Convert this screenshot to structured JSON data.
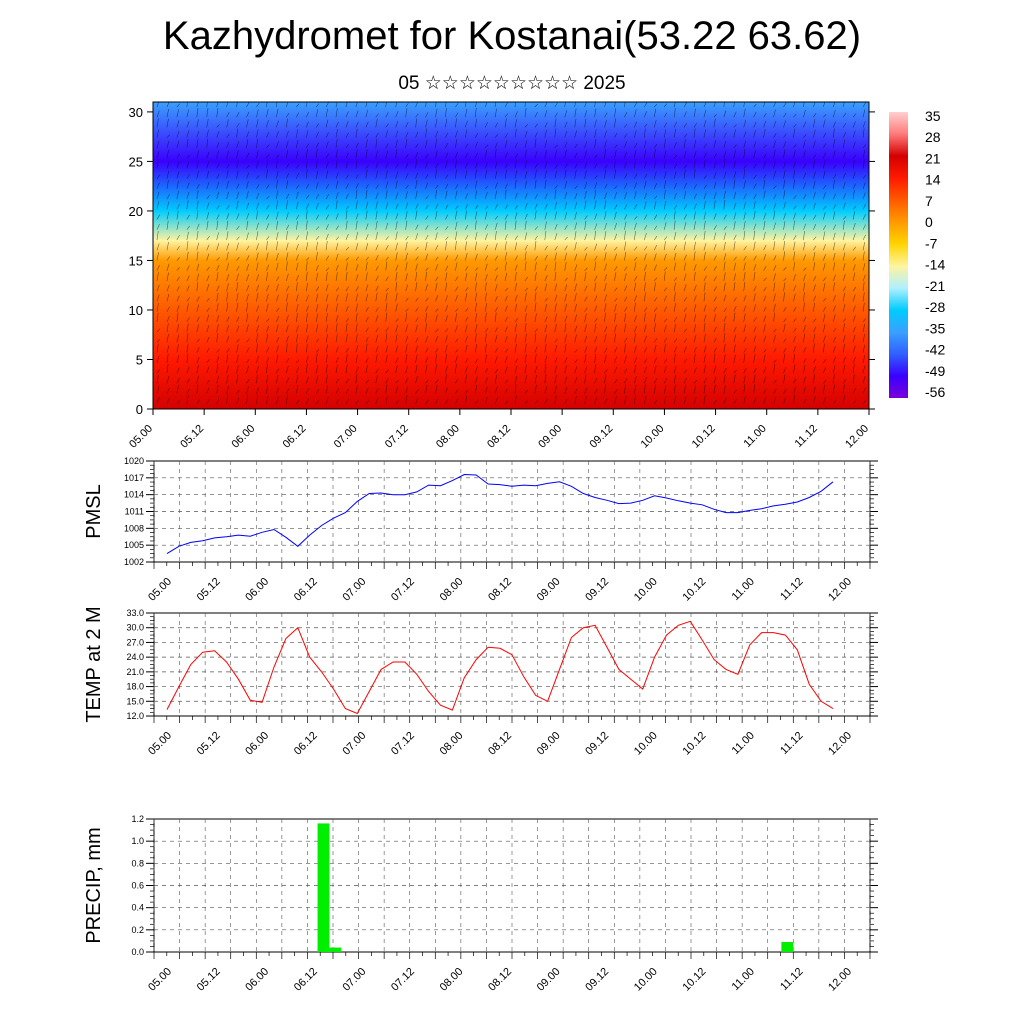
{
  "header": {
    "title": "Kazhydromet for Kostanai(53.22 63.62)",
    "subtitle": "05 ☆☆☆☆☆☆☆☆☆ 2025"
  },
  "chart_data": [
    {
      "type": "heatmap",
      "title": "",
      "xlabel": "",
      "ylabel": "",
      "x_tick_labels": [
        "05.00",
        "05.12",
        "06.00",
        "06.12",
        "07.00",
        "07.12",
        "08.00",
        "08.12",
        "09.00",
        "09.12",
        "10.00",
        "10.12",
        "11.00",
        "11.12",
        "12.00"
      ],
      "y_ticks": [
        0,
        5,
        10,
        15,
        20,
        25,
        30
      ],
      "ylim": [
        0,
        31
      ],
      "colorbar": {
        "labels": [
          "35",
          "28",
          "21",
          "14",
          "7",
          "0",
          "-7",
          "-14",
          "-21",
          "-28",
          "-35",
          "-42",
          "-49",
          "-56"
        ],
        "range": [
          -63,
          42
        ]
      },
      "field_description": "temperature cross-section with wind barbs",
      "field_levels": [
        {
          "height": 0,
          "value": 24
        },
        {
          "height": 5,
          "value": 20
        },
        {
          "height": 10,
          "value": 10
        },
        {
          "height": 15,
          "value": -2
        },
        {
          "height": 17,
          "value": -14
        },
        {
          "height": 20,
          "value": -32
        },
        {
          "height": 25,
          "value": -56
        },
        {
          "height": 31,
          "value": -42
        }
      ],
      "colors": {
        "scale": [
          "#7a00d8",
          "#3a00ff",
          "#3060ff",
          "#3aa0ff",
          "#00ccff",
          "#b0f0ff",
          "#fff4a0",
          "#ffd400",
          "#ff9a00",
          "#ff5a00",
          "#ff1a00",
          "#d40000",
          "#ff7a7a",
          "#ffd0d0"
        ]
      }
    },
    {
      "type": "line",
      "ylabel": "PMSL",
      "x_tick_labels": [
        "05.00",
        "05.12",
        "06.00",
        "06.12",
        "07.00",
        "07.12",
        "08.00",
        "08.12",
        "09.00",
        "09.12",
        "10.00",
        "10.12",
        "11.00",
        "11.12",
        "12.00"
      ],
      "y_tick_labels": [
        "1002",
        "1005",
        "1008",
        "1011",
        "1014",
        "1017",
        "1020"
      ],
      "ylim": [
        1002,
        1020
      ],
      "series": [
        {
          "color": "#0000ff",
          "values": [
            1003.5,
            1004.8,
            1005.5,
            1005.8,
            1006.3,
            1006.5,
            1006.8,
            1006.6,
            1007.3,
            1007.8,
            1006.4,
            1004.8,
            1006.8,
            1008.5,
            1009.8,
            1010.8,
            1012.8,
            1014.2,
            1014.3,
            1014.0,
            1014.0,
            1014.5,
            1015.7,
            1015.6,
            1016.5,
            1017.6,
            1017.5,
            1015.9,
            1015.8,
            1015.5,
            1015.7,
            1015.6,
            1016.0,
            1016.3,
            1015.5,
            1014.2,
            1013.5,
            1013.0,
            1012.4,
            1012.5,
            1013.0,
            1013.8,
            1013.4,
            1012.9,
            1012.5,
            1012.2,
            1011.4,
            1010.8,
            1010.8,
            1011.2,
            1011.5,
            1012.0,
            1012.3,
            1012.7,
            1013.5,
            1014.6,
            1016.3
          ]
        }
      ]
    },
    {
      "type": "line",
      "ylabel": "TEMP at 2 M",
      "x_tick_labels": [
        "05.00",
        "05.12",
        "06.00",
        "06.12",
        "07.00",
        "07.12",
        "08.00",
        "08.12",
        "09.00",
        "09.12",
        "10.00",
        "10.12",
        "11.00",
        "11.12",
        "12.00"
      ],
      "y_tick_labels": [
        "12.0",
        "15.0",
        "18.0",
        "21.0",
        "24.0",
        "27.0",
        "30.0",
        "33.0"
      ],
      "ylim": [
        12,
        33
      ],
      "series": [
        {
          "color": "#ff0000",
          "values": [
            13.3,
            18.0,
            22.5,
            25.0,
            25.3,
            23.0,
            19.5,
            15.2,
            14.8,
            22.0,
            27.8,
            30.0,
            24.0,
            21.0,
            17.5,
            13.5,
            12.5,
            17.0,
            21.5,
            23.0,
            23.0,
            20.5,
            17.0,
            14.2,
            13.2,
            19.8,
            23.5,
            26.0,
            25.8,
            24.5,
            20.0,
            16.2,
            15.0,
            21.5,
            28.0,
            30.0,
            30.5,
            26.0,
            21.5,
            19.5,
            17.5,
            24.0,
            28.5,
            30.5,
            31.3,
            27.5,
            23.5,
            21.5,
            20.5,
            26.5,
            29.0,
            29.0,
            28.5,
            25.5,
            18.5,
            15.0,
            13.5
          ]
        }
      ]
    },
    {
      "type": "bar",
      "ylabel": "PRECIP, mm",
      "x_tick_labels": [
        "05.00",
        "05.12",
        "06.00",
        "06.12",
        "07.00",
        "07.12",
        "08.00",
        "08.12",
        "09.00",
        "09.12",
        "10.00",
        "10.12",
        "11.00",
        "11.12",
        "12.00"
      ],
      "y_tick_labels": [
        "0.0",
        "0.2",
        "0.4",
        "0.6",
        "0.8",
        "1.0",
        "1.2"
      ],
      "ylim": [
        0,
        1.2
      ],
      "bars": [
        {
          "index": 12,
          "value": 1.16
        },
        {
          "index": 13,
          "value": 0.04
        },
        {
          "index": 51,
          "value": 0.09
        }
      ],
      "bar_color": "#00ee00"
    }
  ]
}
